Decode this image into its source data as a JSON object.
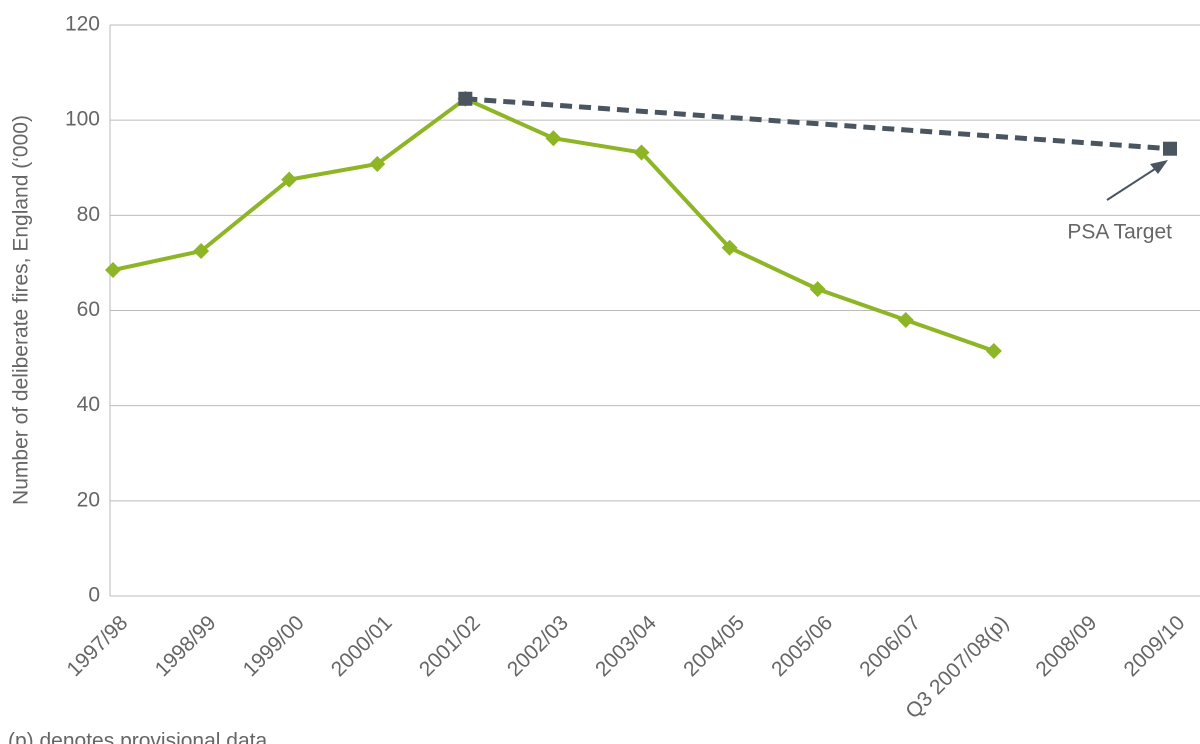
{
  "chart_data": {
    "type": "line",
    "y_label": "Number of deliberate fires, England (‘000)",
    "categories": [
      "1997/98",
      "1998/99",
      "1999/00",
      "2000/01",
      "2001/02",
      "2002/03",
      "2003/04",
      "2004/05",
      "2005/06",
      "2006/07",
      "Q3 2007/08(p)",
      "2008/09",
      "2009/10"
    ],
    "series": [
      {
        "name": "Deliberate fires",
        "color": "#8db526",
        "marker": "diamond",
        "dashed": false,
        "values": [
          68.5,
          72.5,
          87.5,
          90.8,
          104.5,
          96.2,
          93.2,
          73.2,
          64.5,
          58,
          51.5,
          null,
          null
        ]
      },
      {
        "name": "PSA Target",
        "color": "#4a5560",
        "marker": "square",
        "dashed": true,
        "connect_gaps": true,
        "values": [
          null,
          null,
          null,
          null,
          104.5,
          null,
          null,
          null,
          null,
          null,
          null,
          null,
          94
        ]
      }
    ],
    "ylim": [
      0,
      120
    ],
    "yticks": [
      0,
      20,
      40,
      60,
      80,
      100,
      120
    ],
    "grid": true,
    "annotation": "PSA Target",
    "footnote": "(p) denotes provisional data"
  }
}
